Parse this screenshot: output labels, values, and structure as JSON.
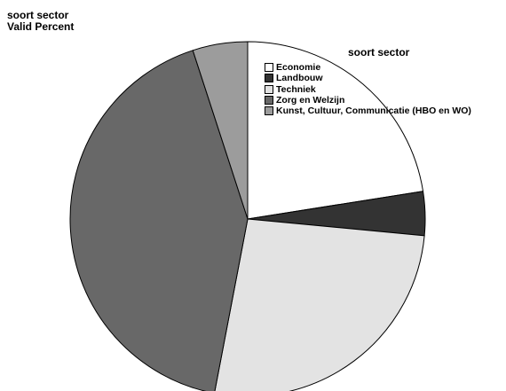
{
  "header": {
    "title_line1": "soort sector",
    "title_line2": "Valid Percent"
  },
  "chart_data": {
    "type": "pie",
    "title": "soort sector",
    "subtitle": "Valid Percent",
    "legend_title": "soort sector",
    "legend_position": "top-right",
    "categories": [
      "Economie",
      "Landbouw",
      "Techniek",
      "Zorg en Welzijn",
      "Kunst, Cultuur, Communicatie (HBO en WO)"
    ],
    "values": [
      22.5,
      4.0,
      26.5,
      42.0,
      5.0
    ],
    "colors": [
      "#ffffff",
      "#333333",
      "#e3e3e3",
      "#686868",
      "#9c9c9c"
    ]
  }
}
